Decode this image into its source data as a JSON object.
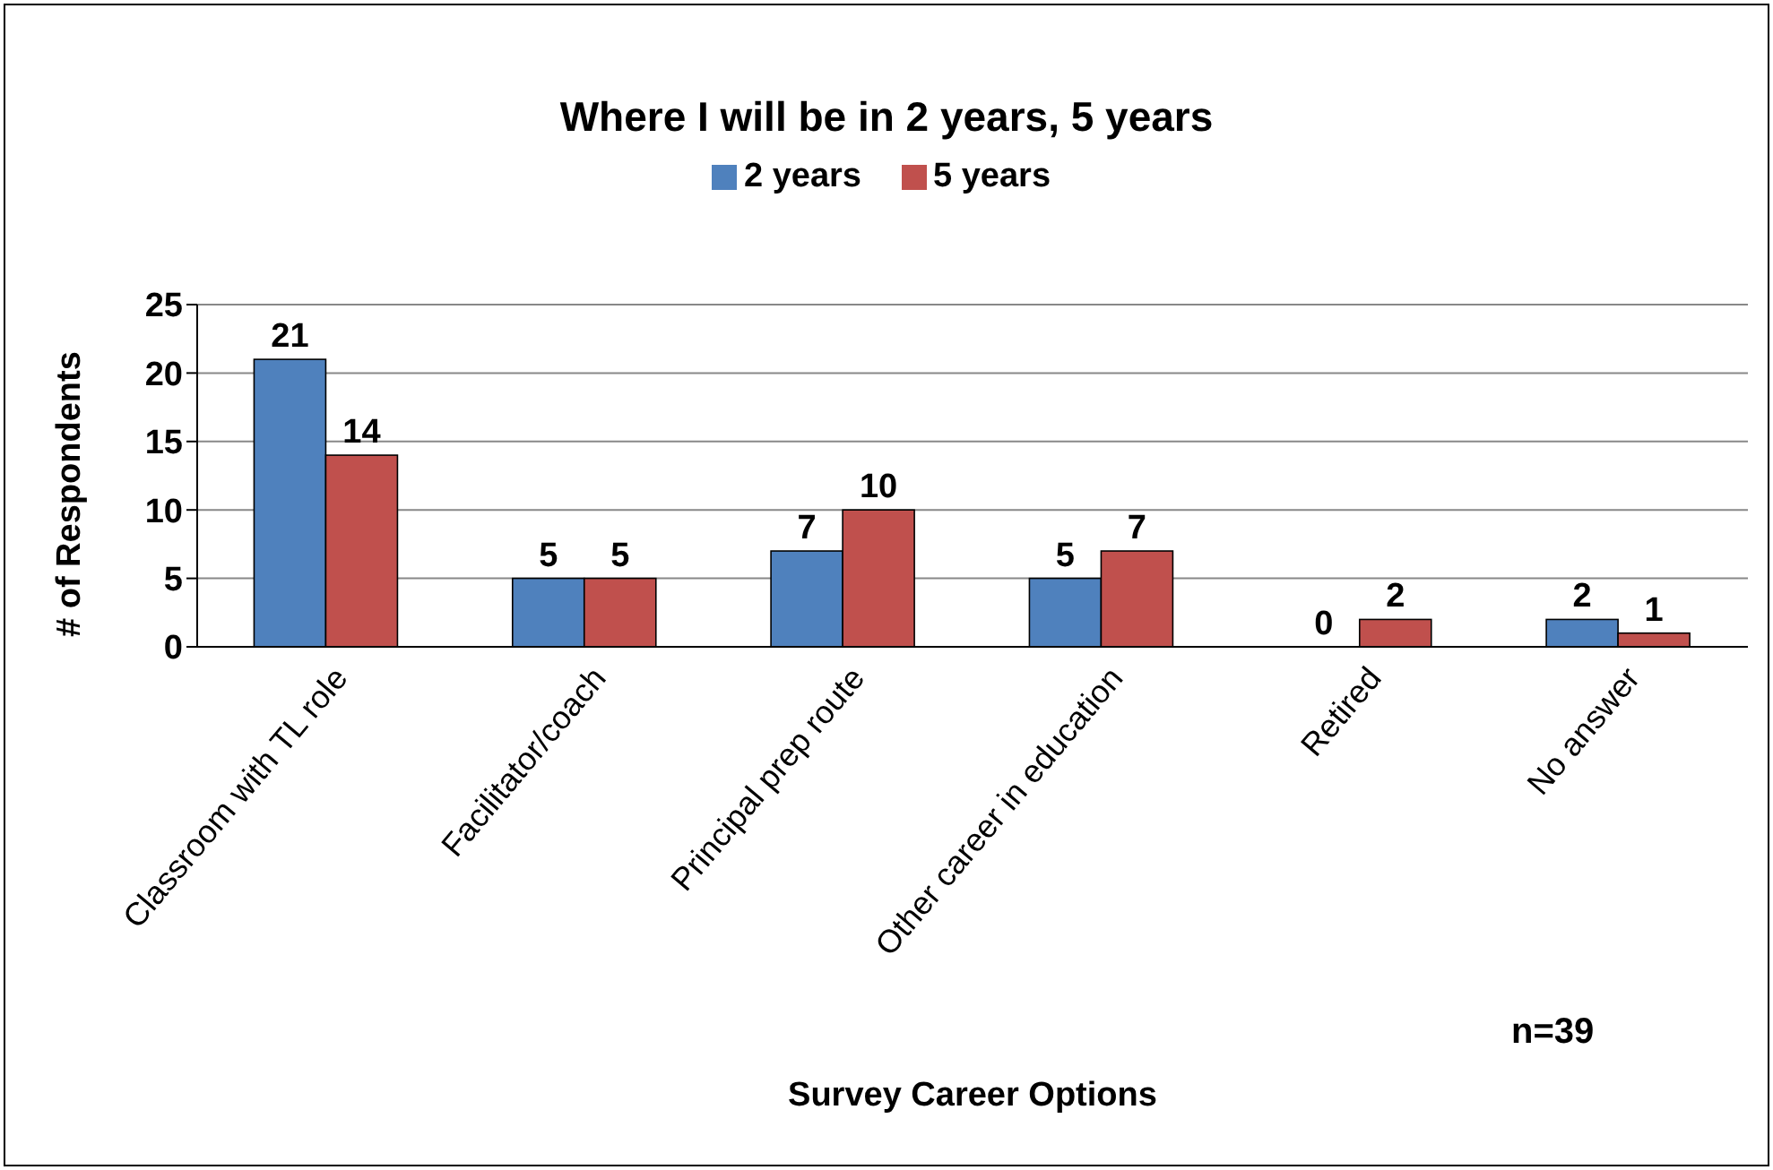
{
  "chart_data": {
    "type": "bar",
    "title": "Where I will be in 2 years, 5 years",
    "xlabel": "Survey Career Options",
    "ylabel": "# of Respondents",
    "categories": [
      "Classroom with TL role",
      "Facilitator/coach",
      "Principal prep route",
      "Other career in education",
      "Retired",
      "No answer"
    ],
    "series": [
      {
        "name": "2 years",
        "color": "#4f81bd",
        "values": [
          21,
          5,
          7,
          5,
          0,
          2
        ]
      },
      {
        "name": "5 years",
        "color": "#c0504d",
        "values": [
          14,
          5,
          10,
          7,
          2,
          1
        ]
      }
    ],
    "ylim": [
      0,
      25
    ],
    "yticks": [
      0,
      5,
      10,
      15,
      20,
      25
    ],
    "grid": "y",
    "legend": "top",
    "data_labels": true,
    "annotations": [
      "n=39"
    ]
  }
}
